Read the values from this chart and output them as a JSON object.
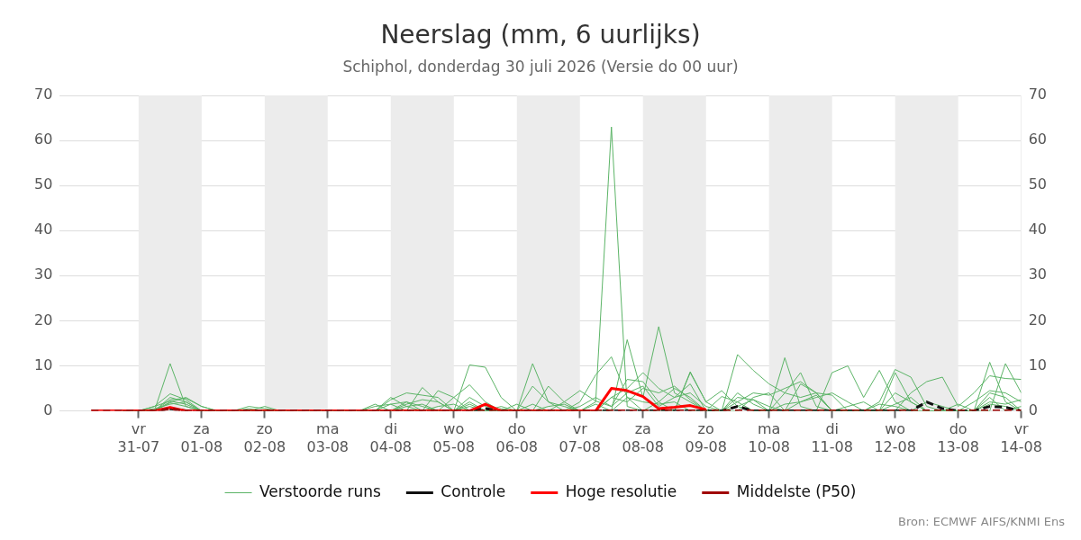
{
  "chart_data": {
    "type": "line",
    "title": "Neerslag (mm, 6 uurlijks)",
    "subtitle": "Schiphol, donderdag 30 juli 2026 (Versie do 00 uur)",
    "x": [
      "2026-07-30T06:00",
      "2026-07-30T12:00",
      "2026-07-30T18:00",
      "2026-07-31T00:00",
      "2026-07-31T06:00",
      "2026-07-31T12:00",
      "2026-07-31T18:00",
      "2026-08-01T00:00",
      "2026-08-01T06:00",
      "2026-08-01T12:00",
      "2026-08-01T18:00",
      "2026-08-02T00:00",
      "2026-08-02T06:00",
      "2026-08-02T12:00",
      "2026-08-02T18:00",
      "2026-08-03T00:00",
      "2026-08-03T06:00",
      "2026-08-03T12:00",
      "2026-08-03T18:00",
      "2026-08-04T00:00",
      "2026-08-04T06:00",
      "2026-08-04T12:00",
      "2026-08-04T18:00",
      "2026-08-05T00:00",
      "2026-08-05T06:00",
      "2026-08-05T12:00",
      "2026-08-05T18:00",
      "2026-08-06T00:00",
      "2026-08-06T06:00",
      "2026-08-06T12:00",
      "2026-08-06T18:00",
      "2026-08-07T00:00",
      "2026-08-07T06:00",
      "2026-08-07T12:00",
      "2026-08-07T18:00",
      "2026-08-08T00:00",
      "2026-08-08T06:00",
      "2026-08-08T12:00",
      "2026-08-08T18:00",
      "2026-08-09T00:00",
      "2026-08-09T06:00",
      "2026-08-09T12:00",
      "2026-08-09T18:00",
      "2026-08-10T00:00",
      "2026-08-10T06:00",
      "2026-08-10T12:00",
      "2026-08-10T18:00",
      "2026-08-11T00:00",
      "2026-08-11T06:00",
      "2026-08-11T12:00",
      "2026-08-11T18:00",
      "2026-08-12T00:00",
      "2026-08-12T06:00",
      "2026-08-12T12:00",
      "2026-08-12T18:00",
      "2026-08-13T00:00",
      "2026-08-13T06:00",
      "2026-08-13T12:00",
      "2026-08-13T18:00",
      "2026-08-14T00:00"
    ],
    "xlim": [
      "2026-07-29T18:00",
      "2026-08-14T00:00"
    ],
    "xticks": [
      {
        "value": "2026-07-31",
        "label": "vr\n31-07"
      },
      {
        "value": "2026-08-01",
        "label": "za\n01-08"
      },
      {
        "value": "2026-08-02",
        "label": "zo\n02-08"
      },
      {
        "value": "2026-08-03",
        "label": "ma\n03-08"
      },
      {
        "value": "2026-08-04",
        "label": "di\n04-08"
      },
      {
        "value": "2026-08-05",
        "label": "wo\n05-08"
      },
      {
        "value": "2026-08-06",
        "label": "do\n06-08"
      },
      {
        "value": "2026-08-07",
        "label": "vr\n07-08"
      },
      {
        "value": "2026-08-08",
        "label": "za\n08-08"
      },
      {
        "value": "2026-08-09",
        "label": "zo\n09-08"
      },
      {
        "value": "2026-08-10",
        "label": "ma\n10-08"
      },
      {
        "value": "2026-08-11",
        "label": "di\n11-08"
      },
      {
        "value": "2026-08-12",
        "label": "wo\n12-08"
      },
      {
        "value": "2026-08-13",
        "label": "do\n13-08"
      },
      {
        "value": "2026-08-14",
        "label": "vr\n14-08"
      }
    ],
    "ylim": [
      0,
      70
    ],
    "yticks": [
      0,
      10,
      20,
      30,
      40,
      50,
      60,
      70
    ],
    "y2lim": [
      0,
      70
    ],
    "y2ticks": [
      0,
      10,
      20,
      30,
      40,
      50,
      60,
      70
    ],
    "grid": "y",
    "legend": "bottom",
    "marker": "none",
    "bands": [
      {
        "axis": "x",
        "from": "2026-07-31",
        "to": "2026-08-01",
        "color": "#ececec"
      },
      {
        "axis": "x",
        "from": "2026-08-02",
        "to": "2026-08-03",
        "color": "#ececec"
      },
      {
        "axis": "x",
        "from": "2026-08-04",
        "to": "2026-08-05",
        "color": "#ececec"
      },
      {
        "axis": "x",
        "from": "2026-08-06",
        "to": "2026-08-07",
        "color": "#ececec"
      },
      {
        "axis": "x",
        "from": "2026-08-08",
        "to": "2026-08-09",
        "color": "#ececec"
      },
      {
        "axis": "x",
        "from": "2026-08-10",
        "to": "2026-08-11",
        "color": "#ececec"
      },
      {
        "axis": "x",
        "from": "2026-08-12",
        "to": "2026-08-13",
        "color": "#ececec"
      }
    ],
    "annotations": [
      "Bron: ECMWF AIFS/KNMI Ens"
    ],
    "series": [
      {
        "name": "Verstoorde runs",
        "color": "#5cb467",
        "line_style": "solid",
        "values": [
          null,
          null,
          0,
          0,
          1,
          3.8,
          2.5,
          0,
          0,
          0,
          0,
          0,
          0,
          0,
          0,
          0,
          0,
          0,
          0,
          3,
          1,
          0,
          0,
          0,
          3,
          1,
          0,
          0,
          0,
          0,
          0,
          0,
          2,
          63,
          1,
          0,
          2,
          5,
          3,
          0,
          0,
          2,
          0,
          0,
          11.8,
          1,
          0,
          0,
          0,
          0,
          2,
          9.2,
          7.5,
          1,
          0,
          0,
          0,
          4,
          3,
          0
        ]
      },
      {
        "color": "#5cb467",
        "line_style": "solid",
        "values": [
          null,
          null,
          0,
          0,
          0,
          10.5,
          1,
          0,
          0,
          0,
          0,
          0,
          0,
          0,
          0,
          0,
          0,
          0,
          1,
          1.5,
          0,
          5.2,
          2,
          0,
          10.2,
          9.7,
          3,
          0,
          0,
          0,
          0,
          2,
          8,
          12,
          3,
          0,
          0,
          0,
          8.5,
          2,
          0,
          12.5,
          9,
          6,
          4,
          8.5,
          1,
          0,
          0,
          0,
          0,
          0,
          0,
          0,
          0,
          0,
          0,
          10.8,
          2,
          0
        ]
      },
      {
        "color": "#5cb467",
        "line_style": "solid",
        "values": [
          null,
          null,
          0,
          0,
          0,
          2,
          3,
          1,
          0,
          0,
          1,
          0.5,
          0,
          0,
          0,
          0,
          0,
          0,
          0,
          0,
          2,
          1,
          0,
          3,
          5.8,
          2,
          0,
          0,
          10.5,
          2,
          1,
          0,
          0,
          0,
          15.8,
          3,
          18.7,
          4,
          2,
          0,
          0,
          0,
          3,
          4,
          0,
          0,
          0,
          8.5,
          10,
          3,
          9,
          2,
          0,
          0,
          0,
          0,
          0,
          0,
          10.5,
          4
        ]
      },
      {
        "color": "#5cb467",
        "line_style": "solid",
        "values": [
          null,
          null,
          0,
          0,
          0,
          2.5,
          2.8,
          1,
          0,
          0,
          0,
          0,
          0,
          0,
          0,
          0,
          0,
          0,
          1.5,
          0,
          0,
          0,
          4.5,
          3,
          0,
          0,
          1,
          0,
          0,
          5.5,
          2,
          4.5,
          2.2,
          1,
          7,
          6.5,
          2,
          0,
          8.7,
          2,
          4.5,
          1,
          0,
          0,
          0,
          6,
          4,
          3.5,
          0,
          0,
          0,
          0,
          4,
          6.5,
          7.5,
          1,
          4,
          7.8,
          7.2,
          7
        ]
      },
      {
        "color": "#5cb467",
        "line_style": "solid",
        "values": [
          null,
          null,
          0,
          0,
          0.5,
          1.5,
          2,
          0,
          0,
          0,
          0,
          0,
          0,
          0,
          0,
          0,
          0,
          0,
          0,
          2.5,
          4,
          3.5,
          3,
          0,
          1.5,
          0,
          0,
          0,
          5.5,
          2,
          0,
          0,
          0,
          3,
          5,
          8.5,
          5,
          3,
          6,
          0,
          3.2,
          2,
          4,
          3.5,
          5,
          6.5,
          4,
          0,
          0,
          0,
          0,
          8.5,
          2,
          0,
          0,
          0,
          2,
          4.5,
          4,
          2
        ]
      },
      {
        "color": "#5cb467",
        "line_style": "solid",
        "values": [
          null,
          null,
          0,
          0,
          0,
          3,
          2,
          0,
          0,
          0,
          0,
          1,
          0,
          0,
          0,
          0,
          0,
          0,
          0,
          1.5,
          2,
          0,
          1,
          1.5,
          0,
          0,
          0,
          1.5,
          0,
          0,
          2,
          0,
          0,
          3,
          2,
          5,
          4,
          5.5,
          2.5,
          0,
          0,
          4,
          1.5,
          0,
          4,
          3,
          4,
          0,
          1,
          2,
          0,
          4,
          2,
          0,
          0,
          1.5,
          0,
          3,
          0,
          1
        ]
      },
      {
        "color": "#5cb467",
        "line_style": "solid",
        "values": [
          null,
          null,
          0,
          0,
          1,
          2.2,
          1.5,
          0,
          0,
          0,
          0,
          0,
          0,
          0,
          0,
          0,
          0,
          0,
          0,
          0,
          1.5,
          2.5,
          2,
          0,
          1,
          0,
          0,
          0,
          1.5,
          0,
          0,
          1,
          3,
          1,
          4,
          5.5,
          1,
          3,
          4,
          1,
          0,
          3,
          2.5,
          0,
          1.5,
          2,
          3,
          4,
          2,
          0,
          0,
          1.5,
          3,
          0,
          0,
          0,
          0,
          2,
          1.5,
          2.5
        ]
      },
      {
        "color": "#5cb467",
        "line_style": "solid",
        "values": [
          null,
          null,
          0,
          0,
          0,
          1.8,
          1,
          0,
          0,
          0,
          0.5,
          0,
          0,
          0,
          0,
          0,
          0,
          0,
          0,
          0,
          1,
          1.5,
          0,
          0,
          2,
          0,
          0.5,
          0,
          0,
          1,
          1.5,
          0,
          1.5,
          0,
          3,
          2,
          1.5,
          2,
          0,
          0,
          0,
          1,
          2.5,
          1,
          0,
          2,
          3.5,
          0,
          0,
          0,
          1.5,
          1,
          0,
          2,
          1,
          0,
          0,
          1.5,
          1,
          0
        ]
      },
      {
        "name": "Controle",
        "color": "#111111",
        "line_style": "dashed",
        "values": [
          null,
          null,
          0,
          0,
          0,
          0.5,
          0,
          0,
          0,
          0,
          0,
          0,
          0,
          0,
          0,
          0,
          0,
          0,
          0,
          0,
          0,
          0,
          0,
          0,
          0,
          0.5,
          0,
          0,
          0,
          0,
          0,
          0,
          0,
          0,
          0,
          0,
          0,
          0,
          0,
          0,
          0,
          1,
          0,
          0,
          0,
          0,
          0,
          0,
          0,
          0,
          0,
          0,
          0,
          2,
          0.5,
          0,
          0,
          1,
          0.8,
          0
        ]
      },
      {
        "name": "Hoge resolutie",
        "color": "#ff0000",
        "line_style": "solid",
        "values": [
          0,
          0,
          0,
          0,
          0,
          0.8,
          0,
          0,
          0,
          0,
          0,
          0,
          0,
          0,
          0,
          0,
          0,
          0,
          0,
          0,
          0,
          0,
          0,
          0,
          0,
          1.5,
          0,
          0,
          0,
          0,
          0,
          0,
          0,
          5,
          4.5,
          3.2,
          0.5,
          0.8,
          1.2,
          0.3,
          null,
          null,
          null,
          null,
          null,
          null,
          null,
          null,
          null,
          null,
          null,
          null,
          null,
          null,
          null,
          null,
          null,
          null,
          null,
          null
        ]
      },
      {
        "name": "Middelste (P50)",
        "color": "#a00000",
        "line_style": "dashed",
        "values": [
          0,
          0,
          0,
          0,
          0,
          0.5,
          0,
          0,
          0,
          0,
          0,
          0,
          0,
          0,
          0,
          0,
          0,
          0,
          0,
          0,
          0,
          0,
          0,
          0,
          0,
          0,
          0,
          0,
          0,
          0,
          0,
          0,
          0,
          0,
          0,
          0,
          0,
          0,
          0,
          0,
          0,
          0,
          0,
          0,
          0,
          0,
          0,
          0,
          0,
          0,
          0,
          0,
          0,
          0,
          0,
          0,
          0,
          0,
          0,
          0
        ]
      }
    ]
  }
}
